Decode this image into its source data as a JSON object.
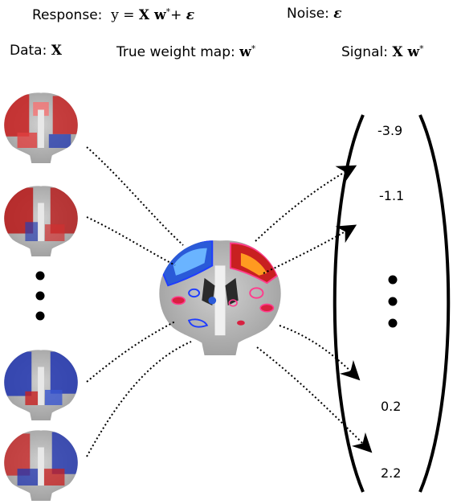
{
  "header": {
    "response_label": "Response:",
    "response_lhs": "y",
    "response_eq": " = ",
    "response_x": "X",
    "response_w": " w",
    "response_star": "*",
    "response_plus": "+ ",
    "response_eps": "ε",
    "noise_label": "Noise:",
    "noise_eps": "ε",
    "data_label": "Data:",
    "data_x": "X",
    "weight_label": "True weight map:",
    "weight_w": "w",
    "weight_star": "*",
    "signal_label": "Signal:",
    "signal_x": "X",
    "signal_w": " w",
    "signal_star": "*"
  },
  "vector": {
    "values": [
      "-3.9",
      "-1.1",
      "0.2",
      "2.2"
    ]
  },
  "colors": {
    "positive": "#d42020",
    "negative": "#2040c0",
    "brain_gray": "#bdbdbd",
    "contour_pink": "#ff3c8c",
    "contour_blue": "#1e3cff"
  }
}
